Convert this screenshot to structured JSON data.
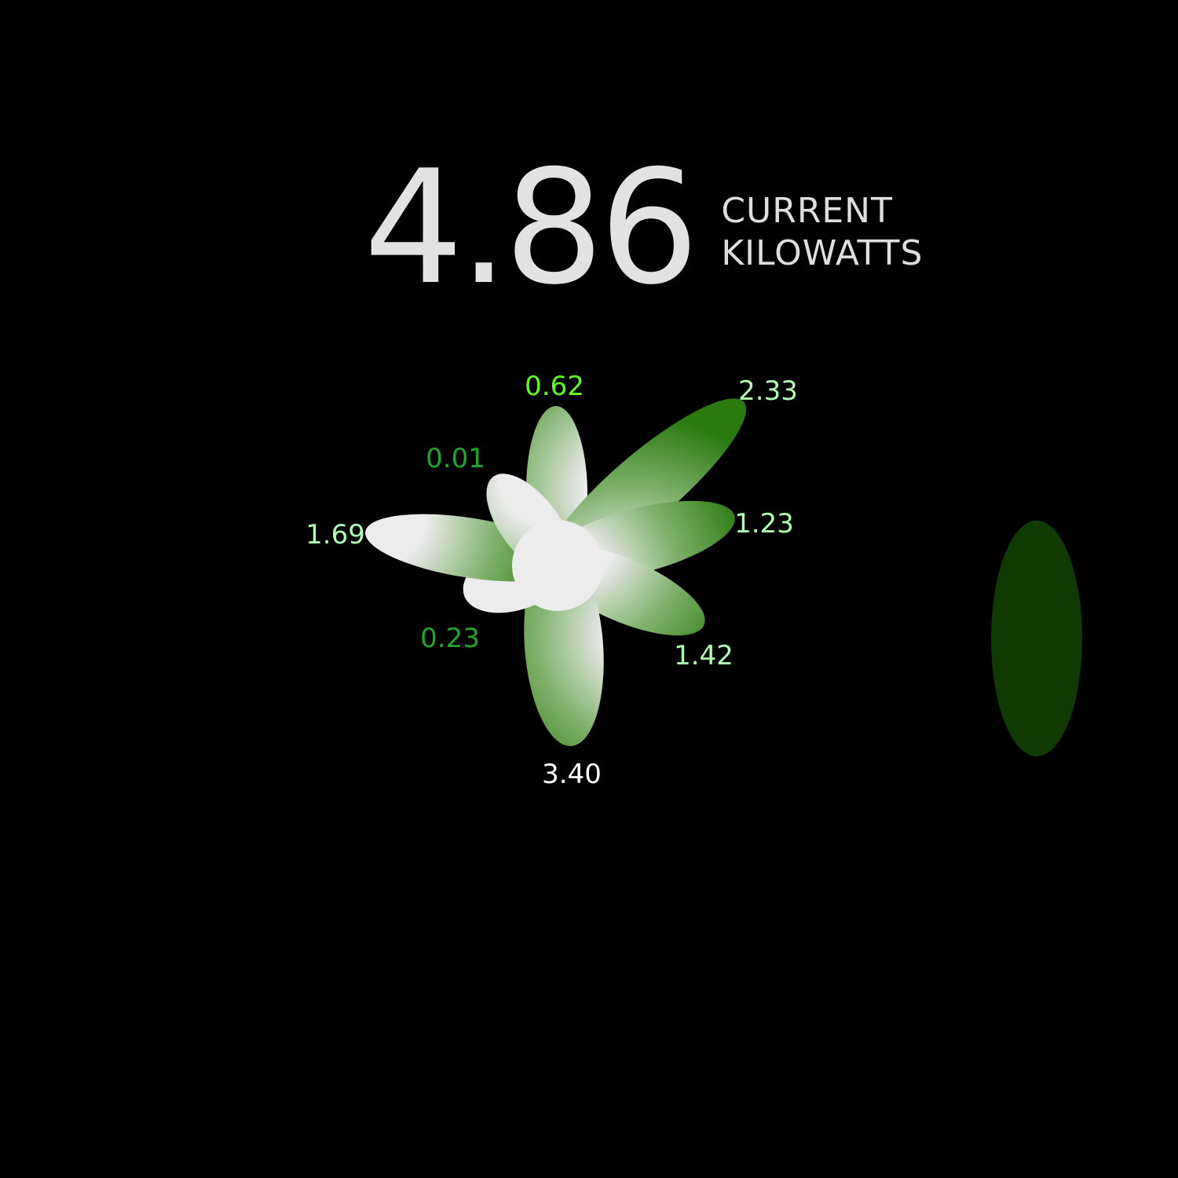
{
  "reading": {
    "value": "4.86",
    "unit_line1": "CURRENT",
    "unit_line2": "KILOWATTS"
  },
  "petals": [
    {
      "label": "0.62",
      "color": "#5cff1c",
      "petal_color": "#2a7a10"
    },
    {
      "label": "2.33",
      "color": "#b0ffb0",
      "petal_color": "#1d6b06"
    },
    {
      "label": "1.23",
      "color": "#b0ffb0",
      "petal_color": "#2a7a10"
    },
    {
      "label": "1.42",
      "color": "#b0ffb0",
      "petal_color": "#2a7a10"
    },
    {
      "label": "3.40",
      "color": "#ffffff",
      "petal_color": "#2a7a10"
    },
    {
      "label": "0.23",
      "color": "#1ea52a",
      "petal_color": "#2a7a10"
    },
    {
      "label": "1.69",
      "color": "#b0ffb0",
      "petal_color": "#2a7a10"
    },
    {
      "label": "0.01",
      "color": "#1ea52a",
      "petal_color": "#2a7a10"
    }
  ],
  "side_indicator_color": "#113a03"
}
